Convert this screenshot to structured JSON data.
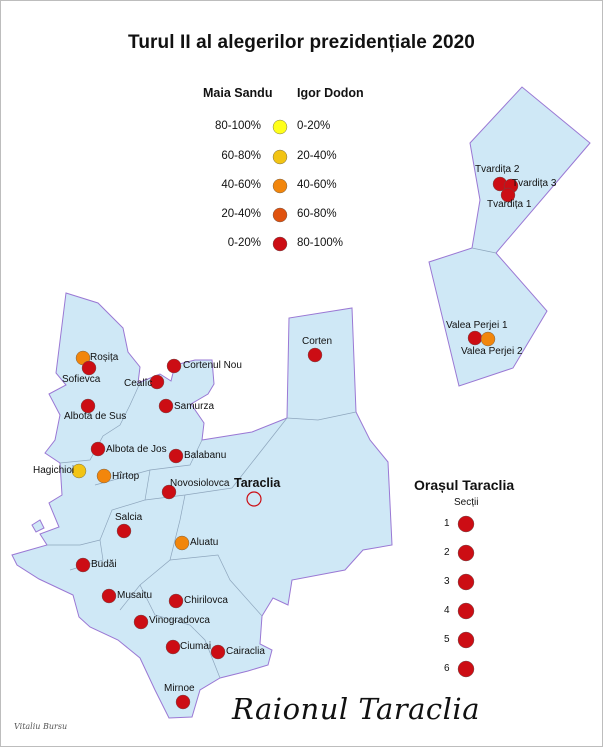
{
  "title": "Turul II al alegerilor prezidențiale 2020",
  "legend": {
    "left_header": "Maia Sandu",
    "right_header": "Igor Dodon",
    "rows": [
      {
        "left": "80-100%",
        "right": "0-20%",
        "color": "#ffff1a"
      },
      {
        "left": "60-80%",
        "right": "20-40%",
        "color": "#f2c414"
      },
      {
        "left": "40-60%",
        "right": "40-60%",
        "color": "#f2860c"
      },
      {
        "left": "20-40%",
        "right": "60-80%",
        "color": "#e0520e"
      },
      {
        "left": "0-20%",
        "right": "80-100%",
        "color": "#cc0d14"
      }
    ]
  },
  "colors": {
    "fill": "#cfe8f6",
    "outline": "#9a78d4",
    "inner_lines": "#8ea6bd",
    "dot_1": "#ffff1a",
    "dot_2": "#f2c414",
    "dot_3": "#f2860c",
    "dot_4": "#e0520e",
    "dot_5": "#cc0d14"
  },
  "localities": [
    {
      "name": "Roșița",
      "class": 3
    },
    {
      "name": "Sofievca",
      "class": 5
    },
    {
      "name": "Cortenul Nou",
      "class": 5
    },
    {
      "name": "Cealîc",
      "class": 5
    },
    {
      "name": "Albota de Sus",
      "class": 5
    },
    {
      "name": "Samurza",
      "class": 5
    },
    {
      "name": "Albota de Jos",
      "class": 5
    },
    {
      "name": "Balabanu",
      "class": 5
    },
    {
      "name": "Hagichioi",
      "class": 2
    },
    {
      "name": "Hîrtop",
      "class": 3
    },
    {
      "name": "Novosiolovca",
      "class": 5
    },
    {
      "name": "Salcia",
      "class": 5
    },
    {
      "name": "Aluatu",
      "class": 3
    },
    {
      "name": "Budăi",
      "class": 5
    },
    {
      "name": "Musaitu",
      "class": 5
    },
    {
      "name": "Chirilovca",
      "class": 5
    },
    {
      "name": "Vinogradovca",
      "class": 5
    },
    {
      "name": "Ciumai",
      "class": 5
    },
    {
      "name": "Cairaclia",
      "class": 5
    },
    {
      "name": "Mirnoe",
      "class": 5
    },
    {
      "name": "Corten",
      "class": 5
    },
    {
      "name": "Tvardița 2",
      "class": 5
    },
    {
      "name": "Tvardița 3",
      "class": 5
    },
    {
      "name": "Tvardița 1",
      "class": 5
    },
    {
      "name": "Valea Perjei 1",
      "class": 5
    },
    {
      "name": "Valea Perjei 2",
      "class": 3
    }
  ],
  "town": "Taraclia",
  "oras": {
    "title": "Orașul Taraclia",
    "subtitle": "Secții",
    "sections": [
      {
        "num": "1",
        "class": 5
      },
      {
        "num": "2",
        "class": 5
      },
      {
        "num": "3",
        "class": 5
      },
      {
        "num": "4",
        "class": 5
      },
      {
        "num": "5",
        "class": 5
      },
      {
        "num": "6",
        "class": 5
      }
    ]
  },
  "signature": "Vitaliu Bursu",
  "raion_title": "Raionul Taraclia"
}
